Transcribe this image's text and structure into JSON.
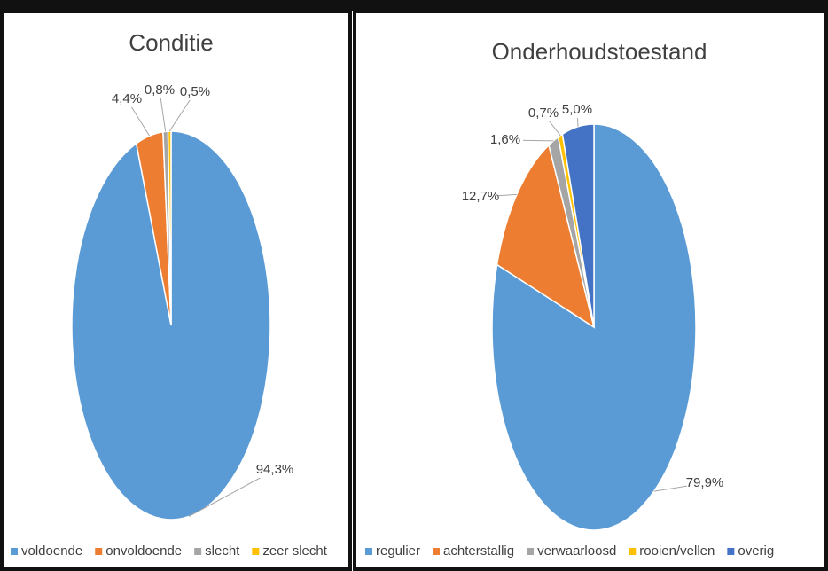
{
  "chart_data": [
    {
      "type": "pie",
      "title": "Conditie",
      "categories": [
        "voldoende",
        "onvoldoende",
        "slecht",
        "zeer slecht"
      ],
      "values": [
        94.3,
        4.4,
        0.8,
        0.5
      ],
      "value_labels": [
        "94,3%",
        "4,4%",
        "0,8%",
        "0,5%"
      ],
      "colors": [
        "#5b9bd5",
        "#ed7d31",
        "#a5a5a5",
        "#ffc000"
      ]
    },
    {
      "type": "pie",
      "title": "Onderhoudstoestand",
      "categories": [
        "regulier",
        "achterstallig",
        "verwaarloosd",
        "rooien/vellen",
        "overig"
      ],
      "values": [
        79.9,
        12.7,
        1.6,
        0.7,
        5.0
      ],
      "value_labels": [
        "79,9%",
        "12,7%",
        "1,6%",
        "0,7%",
        "5,0%"
      ],
      "colors": [
        "#5b9bd5",
        "#ed7d31",
        "#a5a5a5",
        "#ffc000",
        "#4472c4"
      ]
    }
  ]
}
